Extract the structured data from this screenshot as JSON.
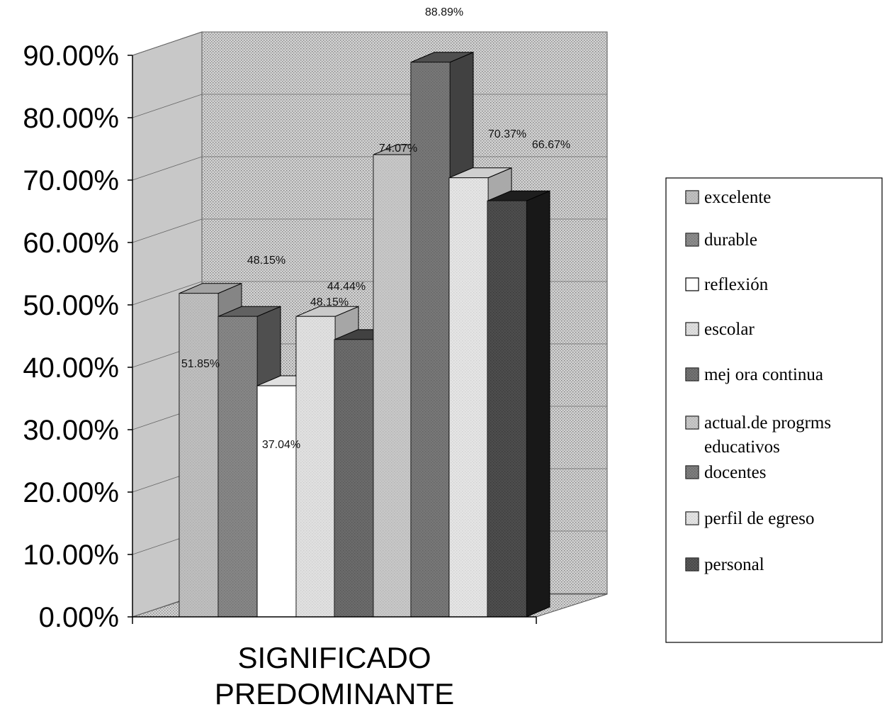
{
  "chart_data": {
    "type": "bar",
    "categories": [
      "SIGNIFICADO PREDOMINANTE"
    ],
    "category_lines": [
      "SIGNIFICADO",
      "PREDOMINANTE"
    ],
    "ylim": [
      0,
      0.9
    ],
    "yticks": [
      "0.00%",
      "10.00%",
      "20.00%",
      "30.00%",
      "40.00%",
      "50.00%",
      "60.00%",
      "70.00%",
      "80.00%",
      "90.00%"
    ],
    "grid": true,
    "legend_position": "right",
    "series": [
      {
        "name": "excelente",
        "value": 0.5185,
        "label": "51.85%",
        "color": "#b9b9b9"
      },
      {
        "name": "durable",
        "value": 0.4815,
        "label": "48.15%",
        "color": "#6e6e6e"
      },
      {
        "name": "reflexión",
        "value": 0.3704,
        "label": "37.04%",
        "color": "#ffffff"
      },
      {
        "name": "escolar",
        "value": 0.4815,
        "label": "48.15%",
        "color": "#e6e6e6"
      },
      {
        "name": "mej ora continua",
        "value": 0.4444,
        "label": "44.44%",
        "color": "#4a4a4a"
      },
      {
        "name": "actual.de progrms educativos",
        "legend_lines": [
          "actual.de progrms",
          "educativos"
        ],
        "value": 0.7407,
        "label": "74.07%",
        "color": "#c4c4c4"
      },
      {
        "name": "docentes",
        "value": 0.8889,
        "label": "88.89%",
        "color": "#5a5a5a"
      },
      {
        "name": "perfil de egreso",
        "value": 0.7037,
        "label": "70.37%",
        "color": "#ebebeb"
      },
      {
        "name": "personal",
        "value": 0.6667,
        "label": "66.67%",
        "color": "#222222"
      }
    ]
  }
}
